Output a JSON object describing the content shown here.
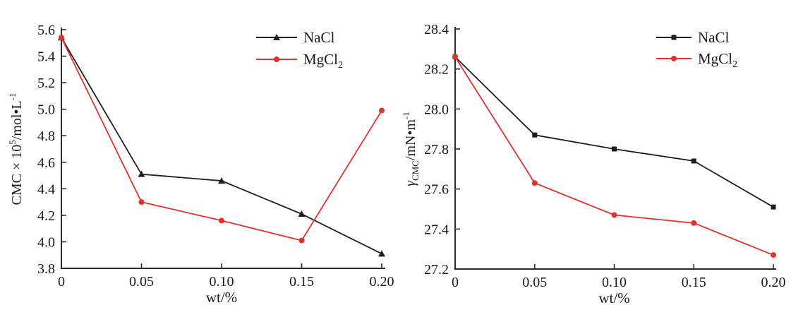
{
  "page": {
    "background": "#ffffff",
    "description_left_panel": "CMC vs salt concentration",
    "description_right_panel": "Surface tension at CMC vs salt concentration"
  },
  "colors": {
    "nacl": "#1f1f1f",
    "mgcl2": "#e0322e",
    "axis": "#2b2b2b",
    "text": "#1a1a1a",
    "background": "#ffffff"
  },
  "chart_data": [
    {
      "type": "line",
      "title": "",
      "xlabel": "wt/%",
      "ylabel_parts": [
        {
          "t": "CMC × 10"
        },
        {
          "t": "5",
          "sup": true
        },
        {
          "t": "/mol•L"
        },
        {
          "t": "-1",
          "sup": true
        }
      ],
      "x": [
        0,
        0.05,
        0.1,
        0.15,
        0.2
      ],
      "xticks": [
        0,
        0.05,
        0.1,
        0.15,
        0.2
      ],
      "xtick_labels": [
        "0",
        "0.05",
        "0.10",
        "0.15",
        "0.20"
      ],
      "xlim": [
        0,
        0.2
      ],
      "ylim": [
        3.8,
        5.6
      ],
      "yticks": [
        3.8,
        4.0,
        4.2,
        4.4,
        4.6,
        4.8,
        5.0,
        5.2,
        5.4,
        5.6
      ],
      "ytick_labels": [
        "3.8",
        "4.0",
        "4.2",
        "4.4",
        "4.6",
        "4.8",
        "5.0",
        "5.2",
        "5.4",
        "5.6"
      ],
      "grid": false,
      "legend_position": "top-right",
      "series": [
        {
          "id": "nacl",
          "name_parts": [
            {
              "t": "NaCl"
            }
          ],
          "color_key": "nacl",
          "marker": "triangle",
          "values": [
            5.54,
            4.51,
            4.46,
            4.21,
            3.91
          ]
        },
        {
          "id": "mgcl2",
          "name_parts": [
            {
              "t": "MgCl"
            },
            {
              "t": "2",
              "sub": true
            }
          ],
          "color_key": "mgcl2",
          "marker": "circle",
          "values": [
            5.54,
            4.3,
            4.16,
            4.01,
            4.99
          ]
        }
      ]
    },
    {
      "type": "line",
      "title": "",
      "xlabel": "wt/%",
      "ylabel_parts": [
        {
          "t": "γ",
          "italic": true
        },
        {
          "t": "CMC",
          "sub": true
        },
        {
          "t": "/mN•m"
        },
        {
          "t": "-1",
          "sup": true
        }
      ],
      "x": [
        0,
        0.05,
        0.1,
        0.15,
        0.2
      ],
      "xticks": [
        0,
        0.05,
        0.1,
        0.15,
        0.2
      ],
      "xtick_labels": [
        "0",
        "0.05",
        "0.10",
        "0.15",
        "0.20"
      ],
      "xlim": [
        0,
        0.2
      ],
      "ylim": [
        27.2,
        28.4
      ],
      "yticks": [
        27.2,
        27.4,
        27.6,
        27.8,
        28.0,
        28.2,
        28.4
      ],
      "ytick_labels": [
        "27.2",
        "27.4",
        "27.6",
        "27.8",
        "28.0",
        "28.2",
        "28.4"
      ],
      "grid": false,
      "legend_position": "top-right",
      "series": [
        {
          "id": "nacl",
          "name_parts": [
            {
              "t": "NaCl"
            }
          ],
          "color_key": "nacl",
          "marker": "square",
          "values": [
            28.26,
            27.87,
            27.8,
            27.74,
            27.51
          ]
        },
        {
          "id": "mgcl2",
          "name_parts": [
            {
              "t": "MgCl"
            },
            {
              "t": "2",
              "sub": true
            }
          ],
          "color_key": "mgcl2",
          "marker": "circle",
          "values": [
            28.26,
            27.63,
            27.47,
            27.43,
            27.27
          ]
        }
      ]
    }
  ]
}
